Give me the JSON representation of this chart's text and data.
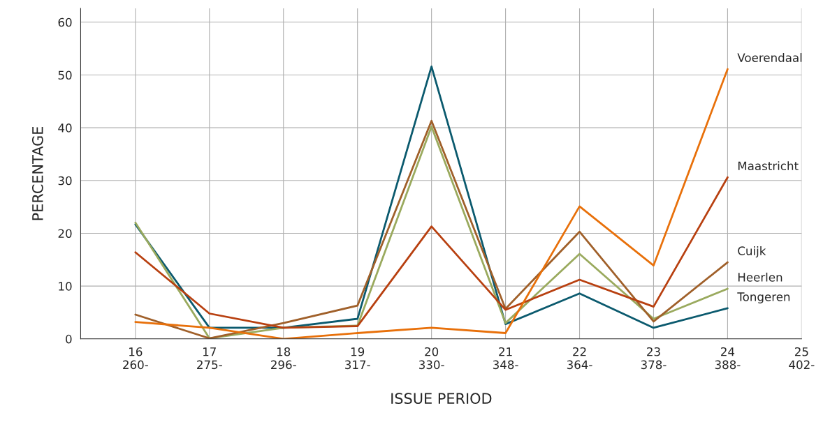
{
  "chart_data": {
    "type": "line",
    "xlabel": "ISSUE PERIOD",
    "ylabel": "PERCENTAGE",
    "categories": [
      "16\n260-",
      "17\n275-",
      "18\n296-",
      "19\n317-",
      "20\n330-",
      "21\n348-",
      "22\n364-",
      "23\n378-",
      "24\n388-",
      "25\n402-"
    ],
    "ylim": [
      0,
      62.6
    ],
    "yticks": [
      0,
      10,
      20,
      30,
      40,
      50,
      60
    ],
    "grid": true,
    "series": [
      {
        "name": "Tongeren",
        "color": "#0b5a6e",
        "values": [
          21.7,
          2.1,
          2.1,
          3.8,
          51.6,
          2.8,
          8.6,
          2.1,
          5.8,
          null
        ]
      },
      {
        "name": "Heerlen",
        "color": "#9aaa5e",
        "values": [
          22,
          0.1,
          2.1,
          2.5,
          40.2,
          3.0,
          16.1,
          3.8,
          9.5,
          null
        ]
      },
      {
        "name": "Cuijk",
        "color": "#a0602a",
        "values": [
          4.6,
          0.1,
          3.0,
          6.3,
          41.3,
          5.7,
          20.3,
          3.3,
          14.5,
          null
        ]
      },
      {
        "name": "Maastricht",
        "color": "#b84010",
        "values": [
          16.4,
          4.8,
          2.1,
          2.4,
          21.3,
          5.5,
          11.2,
          6.1,
          30.6,
          null
        ]
      },
      {
        "name": "Voerendaal",
        "color": "#e8700a",
        "values": [
          3.2,
          2.1,
          0,
          1.1,
          2.1,
          1.1,
          25.1,
          13.9,
          51.1,
          null
        ]
      }
    ]
  }
}
